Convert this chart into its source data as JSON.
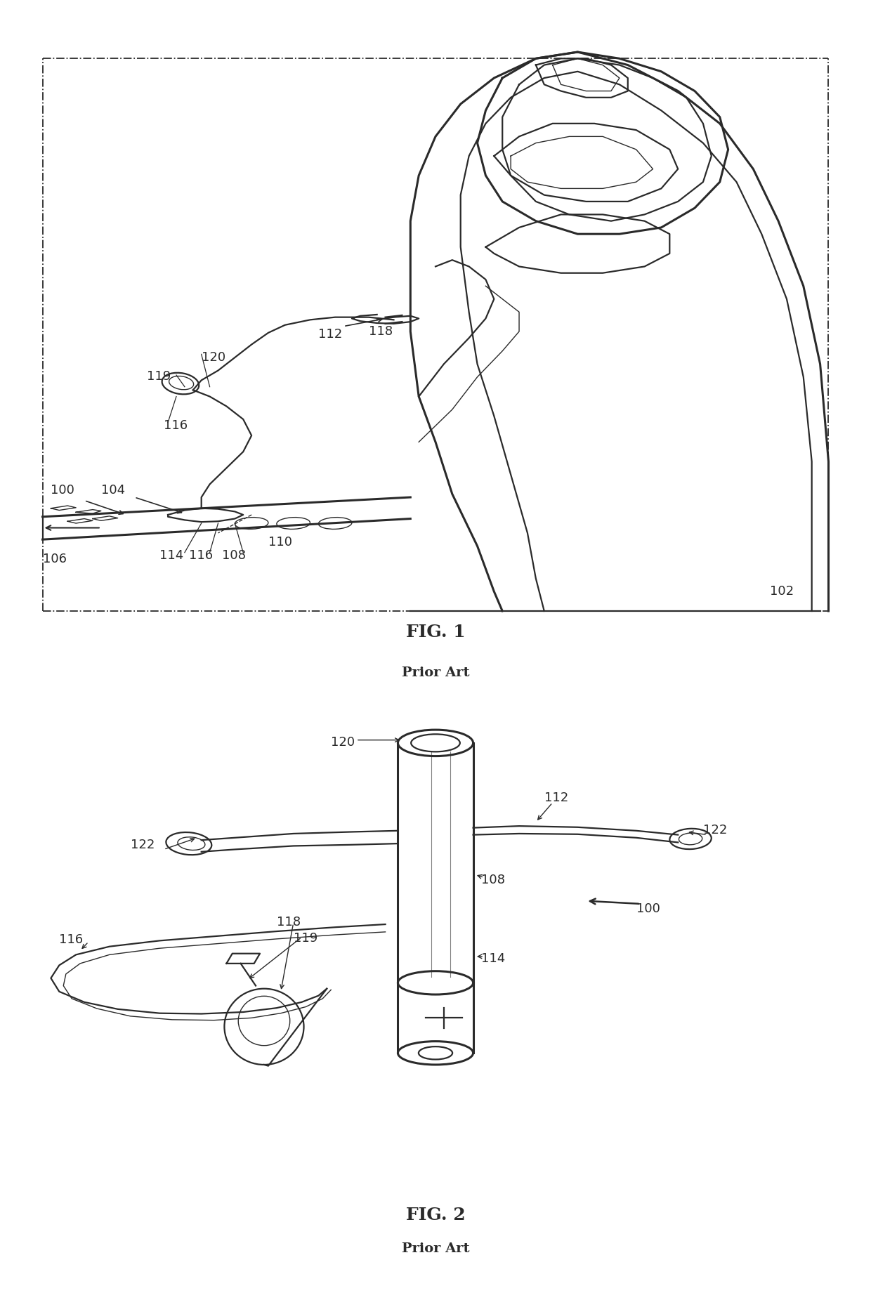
{
  "fig_width": 12.4,
  "fig_height": 18.51,
  "bg_color": "#ffffff",
  "line_color": "#2a2a2a",
  "fig1_title": "FIG. 1",
  "fig1_subtitle": "Prior Art",
  "fig2_title": "FIG. 2",
  "fig2_subtitle": "Prior Art",
  "lw_thick": 2.2,
  "lw_main": 1.6,
  "lw_thin": 1.0,
  "fs_label": 13,
  "fs_title": 18,
  "fs_subtitle": 14
}
